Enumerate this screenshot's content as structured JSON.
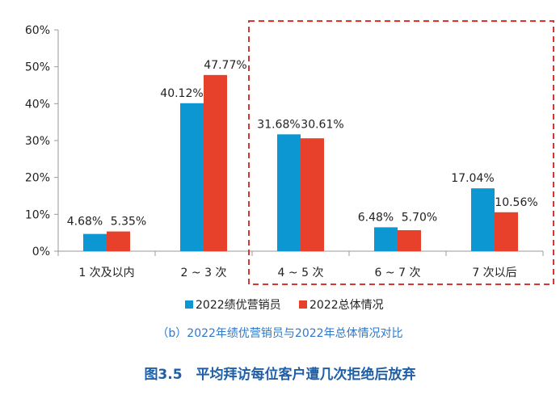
{
  "chart_data": {
    "type": "bar",
    "categories": [
      "1 次及以内",
      "2 ~ 3 次",
      "4 ~ 5 次",
      "6 ~ 7 次",
      "7 次以后"
    ],
    "series": [
      {
        "name": "2022绩优营销员",
        "values": [
          4.68,
          40.12,
          31.68,
          6.48,
          17.04
        ],
        "labels": [
          "4.68%",
          "40.12%",
          "31.68%",
          "6.48%",
          "17.04%"
        ],
        "color": "#0c96d2"
      },
      {
        "name": "2022总体情况",
        "values": [
          5.35,
          47.77,
          30.61,
          5.7,
          10.56
        ],
        "labels": [
          "5.35%",
          "47.77%",
          "30.61%",
          "5.70%",
          "10.56%"
        ],
        "color": "#e8412b"
      }
    ],
    "ylim": [
      0,
      60
    ],
    "yticks": [
      "0%",
      "10%",
      "20%",
      "30%",
      "40%",
      "50%",
      "60%"
    ],
    "ytick_values": [
      0,
      10,
      20,
      30,
      40,
      50,
      60
    ],
    "grid": false,
    "legend_position": "bottom",
    "highlight": {
      "from_category": 2,
      "to_category": 4,
      "style": "dashed",
      "color": "#e0312a"
    },
    "subtitle": "（b）2022年绩优营销员与2022年总体情况对比",
    "title": "图3.5　平均拜访每位客户遭几次拒绝后放弃"
  }
}
